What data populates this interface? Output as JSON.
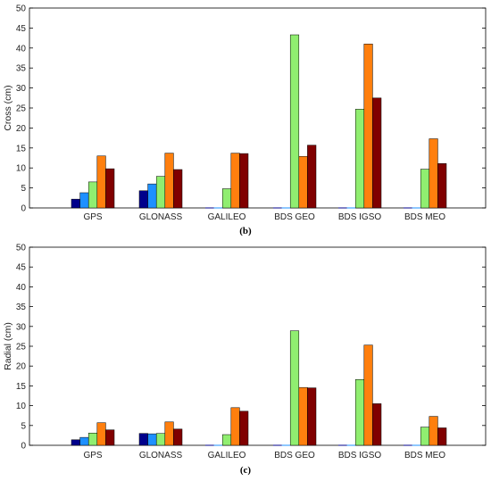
{
  "chart_data": [
    {
      "type": "bar",
      "panel_label": "(b)",
      "ylabel": "Cross (cm)",
      "ylim": [
        0,
        50
      ],
      "yticks": [
        "0",
        "5",
        "10",
        "15",
        "20",
        "25",
        "30",
        "35",
        "40",
        "45",
        "50"
      ],
      "categories": [
        "GPS",
        "GLONASS",
        "GALILEO",
        "BDS GEO",
        "BDS IGSO",
        "BDS MEO"
      ],
      "series": [
        {
          "color": "#00008B",
          "values": [
            2.2,
            4.3,
            0,
            0,
            0,
            0
          ]
        },
        {
          "color": "#1E90FF",
          "values": [
            3.8,
            6.0,
            0,
            0,
            0,
            0
          ]
        },
        {
          "color": "#90EE70",
          "values": [
            6.5,
            7.9,
            4.8,
            43.3,
            24.7,
            9.7
          ]
        },
        {
          "color": "#FF7F0E",
          "values": [
            13.0,
            13.7,
            13.7,
            12.9,
            41.0,
            17.3
          ]
        },
        {
          "color": "#800000",
          "values": [
            9.8,
            9.6,
            13.6,
            15.7,
            27.5,
            11.1
          ]
        }
      ],
      "grid": false
    },
    {
      "type": "bar",
      "panel_label": "(c)",
      "ylabel": "Radial (cm)",
      "ylim": [
        0,
        50
      ],
      "yticks": [
        "0",
        "5",
        "10",
        "15",
        "20",
        "25",
        "30",
        "35",
        "40",
        "45",
        "50"
      ],
      "categories": [
        "GPS",
        "GLONASS",
        "GALILEO",
        "BDS GEO",
        "BDS IGSO",
        "BDS MEO"
      ],
      "series": [
        {
          "color": "#00008B",
          "values": [
            1.4,
            3.0,
            0,
            0,
            0,
            0
          ]
        },
        {
          "color": "#1E90FF",
          "values": [
            2.0,
            2.9,
            0,
            0,
            0,
            0
          ]
        },
        {
          "color": "#90EE70",
          "values": [
            3.1,
            3.0,
            2.7,
            28.9,
            16.6,
            4.6
          ]
        },
        {
          "color": "#FF7F0E",
          "values": [
            5.7,
            5.9,
            9.5,
            14.6,
            25.3,
            7.3
          ]
        },
        {
          "color": "#800000",
          "values": [
            3.9,
            4.1,
            8.6,
            14.5,
            10.5,
            4.4
          ]
        }
      ],
      "grid": false
    }
  ]
}
